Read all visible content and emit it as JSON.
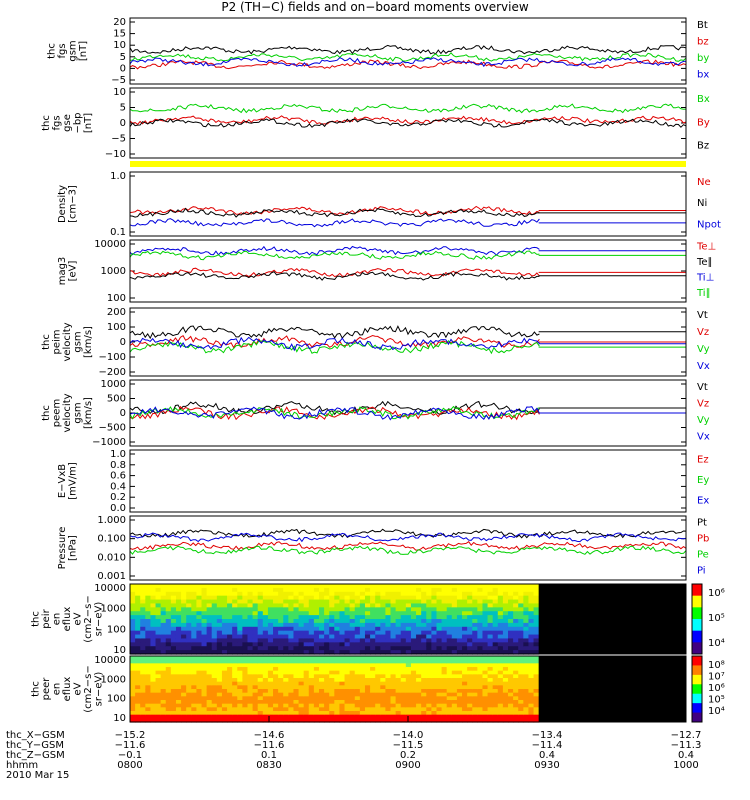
{
  "title": "P2 (TH−C) fields and on−board moments overview",
  "colors": {
    "black": "#000000",
    "red": "#e00000",
    "green": "#00d000",
    "blue": "#0000dd",
    "yellow": "#ffff00",
    "bg": "#ffffff"
  },
  "time_axis": {
    "ticks": [
      "0800",
      "0830",
      "0900",
      "0930",
      "1000"
    ],
    "footer_labels": [
      "thc_X−GSM",
      "thc_Y−GSM",
      "thc_Z−GSM",
      "hhmm",
      "2010 Mar 15"
    ],
    "footer_values": [
      [
        "−15.2",
        "−14.6",
        "−14.0",
        "−13.4",
        "−12.7"
      ],
      [
        "−11.6",
        "−11.6",
        "−11.5",
        "−11.4",
        "−11.3"
      ],
      [
        "−0.1",
        "0.1",
        "0.2",
        "0.4",
        "0.4"
      ]
    ]
  },
  "chart_data": [
    {
      "type": "line",
      "ylabel": [
        "thc",
        "fgs",
        "gsm",
        "[nT]"
      ],
      "ylim": [
        -5,
        22
      ],
      "ticks": [
        "20",
        "15",
        "10",
        "5",
        "0",
        "−5"
      ],
      "series": [
        {
          "name": "Bt",
          "color": "black",
          "level": 9
        },
        {
          "name": "bz",
          "color": "red",
          "level": 3
        },
        {
          "name": "by",
          "color": "green",
          "level": 6
        },
        {
          "name": "bx",
          "color": "blue",
          "level": 4
        }
      ]
    },
    {
      "type": "line",
      "ylabel": [
        "thc",
        "fgs",
        "gse",
        "−bp",
        "[nT]"
      ],
      "ylim": [
        -13,
        11
      ],
      "ticks": [
        "10",
        "5",
        "0",
        "−5",
        "−10"
      ],
      "series": [
        {
          "name": "Bx",
          "color": "green",
          "level": 4
        },
        {
          "name": "By",
          "color": "red",
          "level": 0
        },
        {
          "name": "Bz",
          "color": "black",
          "level": -1
        }
      ]
    },
    {
      "type": "line",
      "ylabel": [
        "Density",
        "[cm−3]"
      ],
      "ylim_log": [
        0.1,
        1.0
      ],
      "ticks": [
        "1.0",
        "0.1"
      ],
      "series": [
        {
          "name": "Ne",
          "color": "red",
          "level": 0.25
        },
        {
          "name": "Ni",
          "color": "black",
          "level": 0.23
        },
        {
          "name": "Npot",
          "color": "blue",
          "level": 0.16
        }
      ]
    },
    {
      "type": "line",
      "ylabel": [
        "mag3",
        "[eV]"
      ],
      "ylim_log": [
        100,
        10000
      ],
      "ticks": [
        "10000",
        "1000",
        "100"
      ],
      "series": [
        {
          "name": "Te⊥",
          "color": "red",
          "level": 900
        },
        {
          "name": "Te∥",
          "color": "black",
          "level": 700
        },
        {
          "name": "Ti⊥",
          "color": "blue",
          "level": 4500
        },
        {
          "name": "Ti∥",
          "color": "green",
          "level": 3200
        }
      ]
    },
    {
      "type": "line",
      "ylabel": [
        "thc",
        "peim",
        "velocity",
        "gsm",
        "[km/s]"
      ],
      "ylim": [
        -200,
        200
      ],
      "ticks": [
        "200",
        "100",
        "0",
        "−100",
        "−200"
      ],
      "series": [
        {
          "name": "Vt",
          "color": "black",
          "level": 60
        },
        {
          "name": "Vz",
          "color": "red",
          "level": 0
        },
        {
          "name": "Vy",
          "color": "green",
          "level": -30
        },
        {
          "name": "Vx",
          "color": "blue",
          "level": -10
        }
      ]
    },
    {
      "type": "line",
      "ylabel": [
        "thc",
        "peem",
        "velocity",
        "gsm",
        "[km/s]"
      ],
      "ylim": [
        -1000,
        1000
      ],
      "ticks": [
        "1000",
        "500",
        "0",
        "−500",
        "−1000"
      ],
      "series": [
        {
          "name": "Vt",
          "color": "black",
          "level": 150
        },
        {
          "name": "Vz",
          "color": "red",
          "level": 0
        },
        {
          "name": "Vy",
          "color": "green",
          "level": 0
        },
        {
          "name": "Vx",
          "color": "blue",
          "level": 0
        }
      ]
    },
    {
      "type": "line",
      "ylabel": [
        "E−VxB",
        "[mV/m]"
      ],
      "ylim": [
        0,
        1
      ],
      "ticks": [
        "1.0",
        "0.8",
        "0.6",
        "0.4",
        "0.2",
        "0.0"
      ],
      "series": [
        {
          "name": "Ez",
          "color": "red"
        },
        {
          "name": "Ey",
          "color": "green"
        },
        {
          "name": "Ex",
          "color": "blue"
        }
      ]
    },
    {
      "type": "line",
      "ylabel": [
        "Pressure",
        "[nPa]"
      ],
      "ylim_log": [
        0.001,
        1.0
      ],
      "ticks": [
        "1.000",
        "0.100",
        "0.010",
        "0.001"
      ],
      "series": [
        {
          "name": "Pt",
          "color": "black",
          "level": 0.15
        },
        {
          "name": "Pb",
          "color": "red",
          "level": 0.04
        },
        {
          "name": "Pe",
          "color": "green",
          "level": 0.025
        },
        {
          "name": "Pi",
          "color": "blue",
          "level": 0.1
        }
      ]
    },
    {
      "type": "heatmap",
      "ylabel": [
        "thc",
        "peir",
        "en",
        "eflux",
        "eV",
        "(cm2−s−",
        "sr−eV)"
      ],
      "ticks": [
        "10000",
        "1000",
        "100",
        "10"
      ],
      "colorbar_ticks": [
        "10⁶",
        "10⁵",
        "10⁴"
      ]
    },
    {
      "type": "heatmap",
      "ylabel": [
        "thc",
        "peer",
        "en",
        "eflux",
        "eV",
        "(cm2−s−",
        "sr−eV)"
      ],
      "ticks": [
        "10000",
        "1000",
        "100",
        "10"
      ],
      "colorbar_ticks": [
        "10⁸",
        "10⁷",
        "10⁶",
        "10⁵",
        "10⁴"
      ]
    }
  ]
}
